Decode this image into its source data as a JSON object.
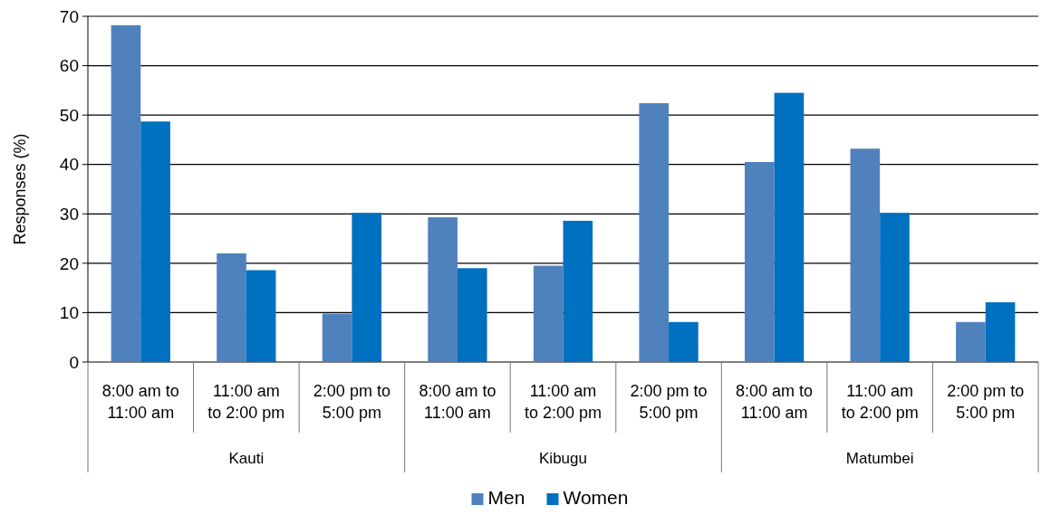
{
  "chart_data": {
    "type": "bar",
    "ylabel": "Responses (%)",
    "categories": [
      "8:00 am to 11:00 am",
      "11:00 am to 2:00 pm",
      "2:00 pm to 5:00 pm",
      "8:00 am to 11:00 am",
      "11:00 am to 2:00 pm",
      "2:00 pm to 5:00 pm",
      "8:00 am to 11:00 am",
      "11:00 am to 2:00 pm",
      "2:00 pm to 5:00 pm"
    ],
    "series": [
      {
        "name": "Men",
        "color": "#4f81bd",
        "values": [
          68.2,
          22,
          9.8,
          29.3,
          19.5,
          52.4,
          40.5,
          43.2,
          8.1
        ]
      },
      {
        "name": "Women",
        "color": "#0070c0",
        "values": [
          48.7,
          18.6,
          30.2,
          19,
          28.6,
          8.1,
          54.5,
          30.2,
          12.1
        ]
      }
    ],
    "annotations": [
      "Kauti",
      "Kibugu",
      "Matumbei"
    ],
    "ylim": [
      0,
      70
    ],
    "yticks": [
      0,
      10,
      20,
      30,
      40,
      50,
      60,
      70
    ],
    "grid": "y",
    "legend": "bottom"
  }
}
